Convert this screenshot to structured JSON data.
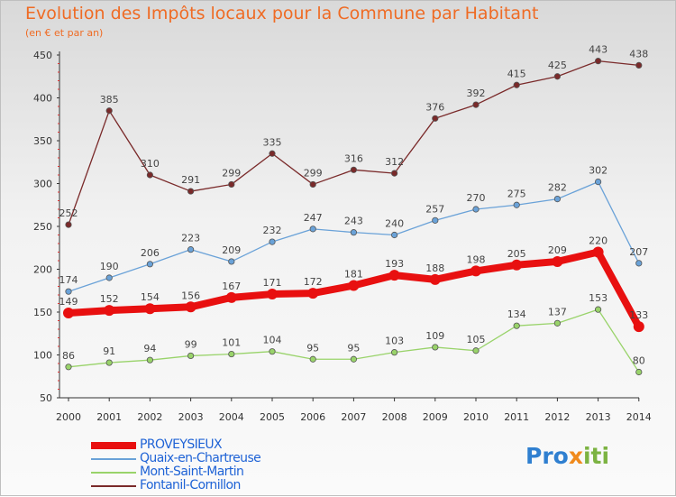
{
  "title": "Evolution des Impôts locaux pour la Commune par Habitant",
  "subtitle": "(en € et par an)",
  "brand": {
    "part1": "Pro",
    "part2": "x",
    "part3": "iti"
  },
  "chart_data": {
    "type": "line",
    "title": "Evolution des Impôts locaux pour la Commune par Habitant",
    "subtitle": "(en € et par an)",
    "xlabel": "",
    "ylabel": "",
    "ylim": [
      50,
      450
    ],
    "yticks": [
      50,
      100,
      150,
      200,
      250,
      300,
      350,
      400,
      450
    ],
    "x": [
      "2000",
      "2001",
      "2002",
      "2003",
      "2004",
      "2005",
      "2006",
      "2007",
      "2008",
      "2009",
      "2010",
      "2011",
      "2012",
      "2013",
      "2014"
    ],
    "grid": false,
    "legend_position": "bottom-left",
    "series": [
      {
        "name": "PROVEYSIEUX",
        "color": "#e81010",
        "emphasis": "thick",
        "values": [
          149,
          152,
          154,
          156,
          167,
          171,
          172,
          181,
          193,
          188,
          198,
          205,
          209,
          220,
          133
        ]
      },
      {
        "name": "Quaix-en-Chartreuse",
        "color": "#6aa2d8",
        "emphasis": "thin",
        "values": [
          174,
          190,
          206,
          223,
          209,
          232,
          247,
          243,
          240,
          257,
          270,
          275,
          282,
          302,
          207
        ]
      },
      {
        "name": "Mont-Saint-Martin",
        "color": "#99d36a",
        "emphasis": "thin",
        "values": [
          86,
          91,
          94,
          99,
          101,
          104,
          95,
          95,
          103,
          109,
          105,
          134,
          137,
          153,
          80
        ]
      },
      {
        "name": "Fontanil-Cornillon",
        "color": "#7a2a2a",
        "emphasis": "thin",
        "values": [
          252,
          385,
          310,
          291,
          299,
          335,
          299,
          316,
          312,
          376,
          392,
          415,
          425,
          443,
          438
        ]
      }
    ]
  }
}
